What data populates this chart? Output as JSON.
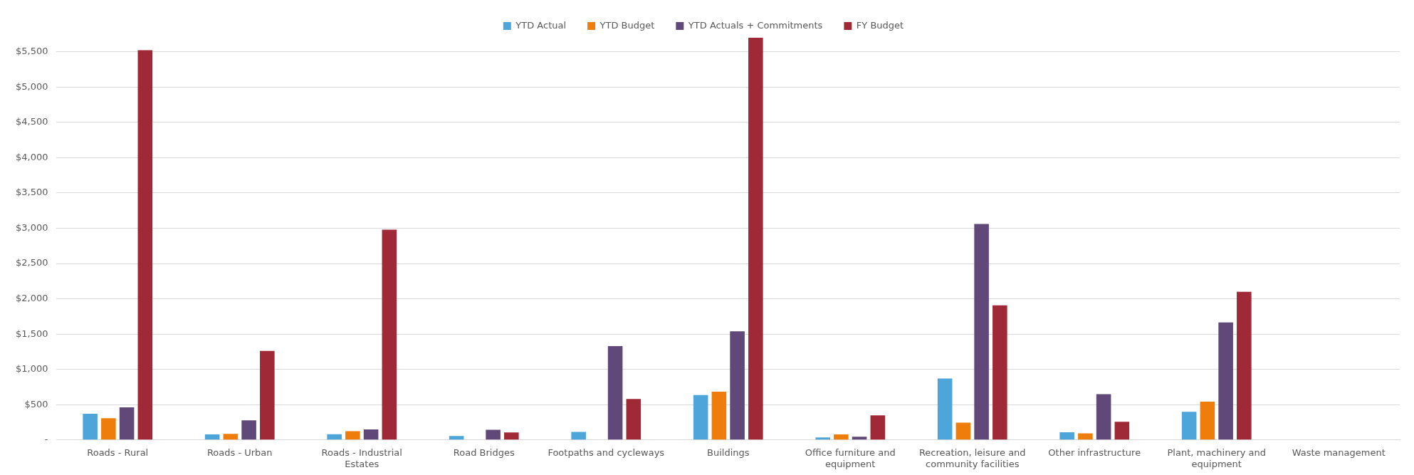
{
  "chart_data": {
    "type": "bar",
    "categories": [
      "Roads - Rural",
      "Roads - Urban",
      "Roads - Industrial Estates",
      "Road Bridges",
      "Footpaths and cycleways",
      "Buildings",
      "Office furniture and equipment",
      "Recreation, leisure and community facilities",
      "Other infrastructure",
      "Plant, machinery and equipment",
      "Waste management"
    ],
    "series": [
      {
        "name": "YTD Actual",
        "color": "#4ea5d9",
        "values": [
          371,
          78,
          82,
          55,
          113,
          637,
          35,
          872,
          109,
          399,
          0
        ]
      },
      {
        "name": "YTD Budget",
        "color": "#ef7d0b",
        "values": [
          309,
          86,
          125,
          0,
          0,
          684,
          78,
          246,
          94,
          543,
          0
        ]
      },
      {
        "name": "YTD Actuals + Commitments",
        "color": "#604878",
        "values": [
          461,
          278,
          149,
          145,
          1329,
          1540,
          47,
          3061,
          649,
          1665,
          0
        ]
      },
      {
        "name": "FY Budget",
        "color": "#a02938",
        "values": [
          5524,
          1263,
          2979,
          106,
          582,
          5700,
          348,
          1908,
          258,
          2099,
          0
        ]
      }
    ],
    "ylim": [
      0,
      5700
    ],
    "yticks": [
      {
        "value": 0,
        "label": "-"
      },
      {
        "value": 500,
        "label": "$500"
      },
      {
        "value": 1000,
        "label": "$1,000"
      },
      {
        "value": 1500,
        "label": "$1,500"
      },
      {
        "value": 2000,
        "label": "$2,000"
      },
      {
        "value": 2500,
        "label": "$2,500"
      },
      {
        "value": 3000,
        "label": "$3,000"
      },
      {
        "value": 3500,
        "label": "$3,500"
      },
      {
        "value": 4000,
        "label": "$4,000"
      },
      {
        "value": 4500,
        "label": "$4,500"
      },
      {
        "value": 5000,
        "label": "$5,000"
      },
      {
        "value": 5500,
        "label": "$5,500"
      }
    ],
    "grid": "y",
    "legend": "top"
  }
}
